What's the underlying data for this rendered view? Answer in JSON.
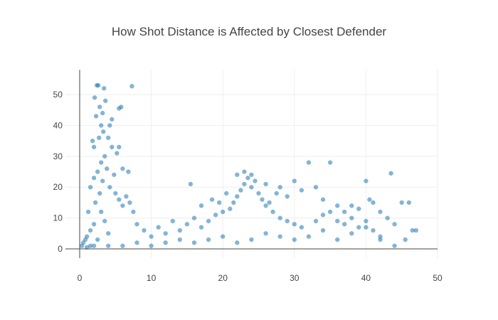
{
  "chart_data": {
    "type": "scatter",
    "title": "How Shot Distance is Affected by Closest Defender",
    "xlabel": "",
    "ylabel": "",
    "xlim": [
      -2,
      50
    ],
    "ylim": [
      -3,
      58
    ],
    "x_ticks": [
      0,
      10,
      20,
      30,
      40,
      50
    ],
    "y_ticks": [
      0,
      10,
      20,
      30,
      40,
      50
    ],
    "grid": true,
    "legend": "none",
    "marker_color": "#1f77b4",
    "marker_opacity": 0.55,
    "series": [
      {
        "points": [
          [
            0.5,
            2
          ],
          [
            1,
            4
          ],
          [
            1.5,
            6
          ],
          [
            2,
            8
          ],
          [
            2.5,
            3
          ],
          [
            3,
            12
          ],
          [
            3.5,
            9
          ],
          [
            4,
            5
          ],
          [
            1.2,
            12
          ],
          [
            2.2,
            15
          ],
          [
            2.8,
            18
          ],
          [
            3.2,
            22
          ],
          [
            2.5,
            25
          ],
          [
            3,
            28
          ],
          [
            3.5,
            30
          ],
          [
            2,
            33
          ],
          [
            2.7,
            36
          ],
          [
            3.3,
            38
          ],
          [
            4,
            36
          ],
          [
            4.5,
            33
          ],
          [
            1.5,
            20
          ],
          [
            2,
            23
          ],
          [
            3.8,
            26
          ],
          [
            4.2,
            20
          ],
          [
            5,
            18
          ],
          [
            5.5,
            16
          ],
          [
            6,
            14
          ],
          [
            6.5,
            17
          ],
          [
            7,
            15
          ],
          [
            7.5,
            12
          ],
          [
            2.3,
            43
          ],
          [
            2.8,
            46
          ],
          [
            3.2,
            44
          ],
          [
            3.6,
            48
          ],
          [
            2.1,
            49
          ],
          [
            2.4,
            53
          ],
          [
            2.6,
            53
          ],
          [
            3.4,
            52
          ],
          [
            5.5,
            45.5
          ],
          [
            5.8,
            46
          ],
          [
            7.3,
            52.7
          ],
          [
            6,
            26
          ],
          [
            6.8,
            25
          ],
          [
            4.8,
            24
          ],
          [
            4.2,
            40
          ],
          [
            4.5,
            42
          ],
          [
            3,
            40
          ],
          [
            1.8,
            35
          ],
          [
            5.5,
            33
          ],
          [
            5.2,
            31
          ],
          [
            8,
            8
          ],
          [
            9,
            6
          ],
          [
            10,
            4
          ],
          [
            11,
            7
          ],
          [
            12,
            5
          ],
          [
            13,
            9
          ],
          [
            14,
            6
          ],
          [
            15,
            8
          ],
          [
            16,
            10
          ],
          [
            17,
            7
          ],
          [
            18,
            9
          ],
          [
            19,
            11
          ],
          [
            20,
            12
          ],
          [
            21,
            13
          ],
          [
            21.5,
            15
          ],
          [
            22,
            17
          ],
          [
            22.5,
            19
          ],
          [
            23,
            21
          ],
          [
            23.5,
            23
          ],
          [
            24,
            20
          ],
          [
            24.5,
            22
          ],
          [
            25,
            18
          ],
          [
            25.5,
            16
          ],
          [
            26,
            14
          ],
          [
            26.5,
            15
          ],
          [
            27,
            12
          ],
          [
            28,
            10
          ],
          [
            29,
            9
          ],
          [
            30,
            8
          ],
          [
            31,
            7
          ],
          [
            15.5,
            21
          ],
          [
            17,
            14
          ],
          [
            18.5,
            16
          ],
          [
            19.5,
            15
          ],
          [
            20.5,
            18
          ],
          [
            22,
            24
          ],
          [
            23,
            25
          ],
          [
            24,
            24
          ],
          [
            26,
            21
          ],
          [
            27.5,
            18
          ],
          [
            28,
            20
          ],
          [
            29,
            17
          ],
          [
            30,
            22
          ],
          [
            31,
            19
          ],
          [
            32,
            28
          ],
          [
            33,
            20
          ],
          [
            34,
            16
          ],
          [
            35,
            28
          ],
          [
            36,
            14
          ],
          [
            37,
            12
          ],
          [
            38,
            10
          ],
          [
            39,
            13
          ],
          [
            40,
            22
          ],
          [
            40.5,
            16
          ],
          [
            41,
            15
          ],
          [
            42,
            12
          ],
          [
            43,
            10
          ],
          [
            43.5,
            24.5
          ],
          [
            44,
            8
          ],
          [
            45,
            15
          ],
          [
            46,
            15
          ],
          [
            46.5,
            6
          ],
          [
            47,
            6
          ],
          [
            45.5,
            3
          ],
          [
            44,
            1
          ],
          [
            42,
            3
          ],
          [
            40,
            7
          ],
          [
            38,
            5
          ],
          [
            36,
            3
          ],
          [
            34,
            6
          ],
          [
            32,
            4
          ],
          [
            30,
            3
          ],
          [
            28,
            4
          ],
          [
            26,
            5
          ],
          [
            24,
            3
          ],
          [
            22,
            2
          ],
          [
            20,
            4
          ],
          [
            18,
            3
          ],
          [
            16,
            2
          ],
          [
            14,
            3
          ],
          [
            12,
            2
          ],
          [
            10,
            1
          ],
          [
            8,
            2
          ],
          [
            6,
            1
          ],
          [
            4,
            1
          ],
          [
            2,
            1
          ],
          [
            1,
            0.5
          ],
          [
            0.3,
            1
          ],
          [
            0.8,
            3
          ],
          [
            1.5,
            1
          ],
          [
            33,
            9
          ],
          [
            34,
            11
          ],
          [
            35,
            12
          ],
          [
            36,
            9
          ],
          [
            37,
            8
          ],
          [
            38,
            14
          ],
          [
            39,
            7
          ],
          [
            40,
            9
          ],
          [
            41,
            6
          ],
          [
            42,
            4
          ]
        ]
      }
    ]
  }
}
